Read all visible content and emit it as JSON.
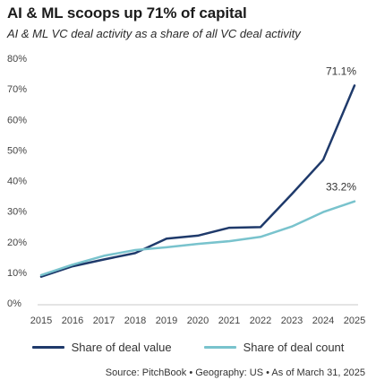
{
  "title": "AI & ML scoops up 71% of capital",
  "subtitle": "AI & ML VC deal activity as a share of all VC deal activity",
  "source": "Source: PitchBook • Geography: US • As of March 31, 2025",
  "chart_data": {
    "type": "line",
    "categories": [
      "2015",
      "2016",
      "2017",
      "2018",
      "2019",
      "2020",
      "2021",
      "2022",
      "2023",
      "2024",
      "2025"
    ],
    "series": [
      {
        "name": "Share of deal value",
        "color": "#1f3a6b",
        "values": [
          8.6,
          12.0,
          14.2,
          16.3,
          21.0,
          22.0,
          24.6,
          24.8,
          35.6,
          46.8,
          71.1
        ]
      },
      {
        "name": "Share of deal count",
        "color": "#79c3cd",
        "values": [
          9.1,
          12.5,
          15.4,
          17.3,
          18.2,
          19.3,
          20.2,
          21.6,
          25.0,
          29.7,
          33.2
        ]
      }
    ],
    "end_labels": [
      "71.1%",
      "33.2%"
    ],
    "yticks": [
      "0%",
      "10%",
      "20%",
      "30%",
      "40%",
      "50%",
      "60%",
      "70%",
      "80%"
    ],
    "ylim": [
      0,
      80
    ],
    "grid": false,
    "legend": "bottom"
  }
}
